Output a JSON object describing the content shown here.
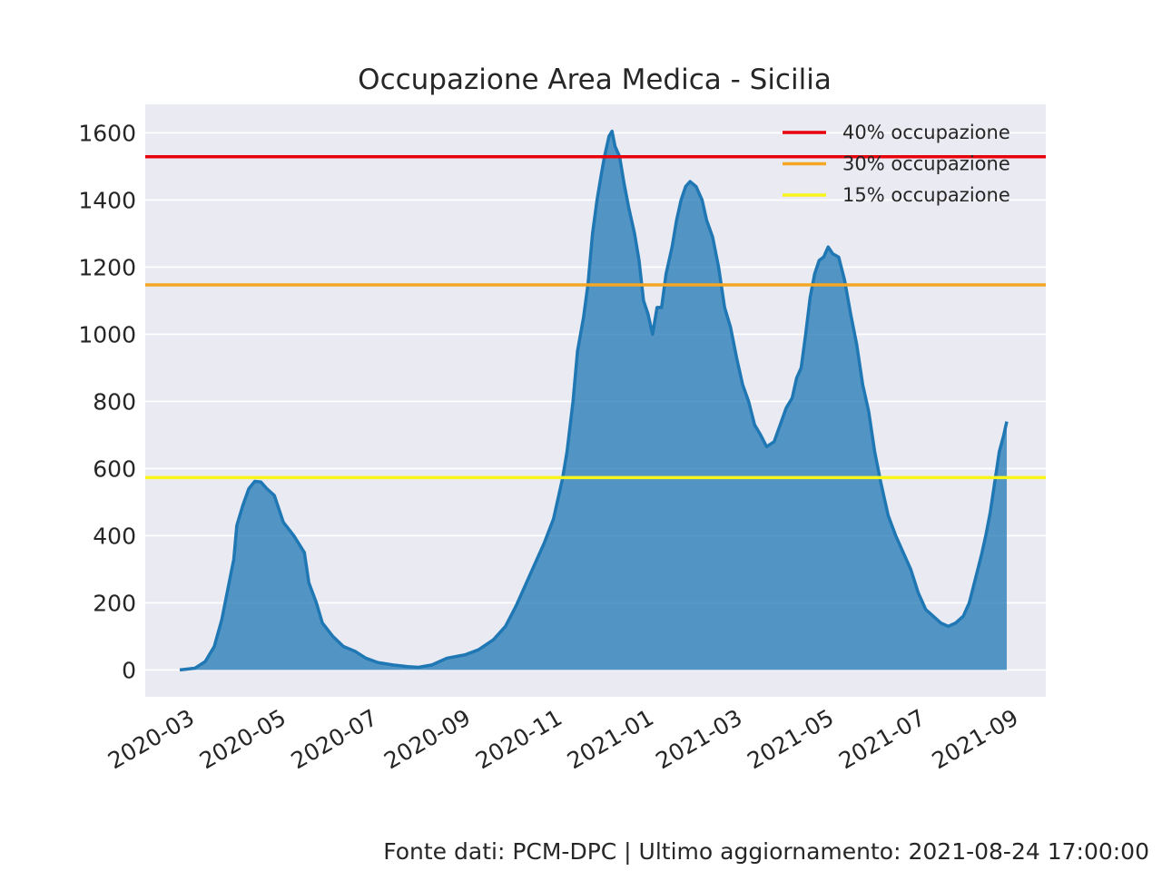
{
  "chart_data": {
    "type": "area",
    "title": "Occupazione Area Medica - Sicilia",
    "xlabel": "",
    "ylabel": "",
    "x_start": "2020-02-24",
    "x_ticks": [
      "2020-03",
      "2020-05",
      "2020-07",
      "2020-09",
      "2020-11",
      "2021-01",
      "2021-03",
      "2021-05",
      "2021-07",
      "2021-09"
    ],
    "x_tick_dates": [
      "2020-03-01",
      "2020-05-01",
      "2020-07-01",
      "2020-09-01",
      "2020-11-01",
      "2021-01-01",
      "2021-03-01",
      "2021-05-01",
      "2021-07-01",
      "2021-09-01"
    ],
    "xlim": [
      "2020-02-01",
      "2021-09-23"
    ],
    "y_ticks": [
      "0",
      "200",
      "400",
      "600",
      "800",
      "1000",
      "1200",
      "1400",
      "1600"
    ],
    "y_tick_values": [
      0,
      200,
      400,
      600,
      800,
      1000,
      1200,
      1400,
      1600
    ],
    "ylim": [
      -80,
      1685
    ],
    "grid": true,
    "legend_position": "top-right",
    "series": [
      {
        "color": "#1f77b4",
        "points": [
          [
            "2020-02-24",
            0
          ],
          [
            "2020-03-05",
            5
          ],
          [
            "2020-03-12",
            25
          ],
          [
            "2020-03-18",
            70
          ],
          [
            "2020-03-23",
            150
          ],
          [
            "2020-03-27",
            240
          ],
          [
            "2020-03-31",
            330
          ],
          [
            "2020-04-02",
            430
          ],
          [
            "2020-04-06",
            490
          ],
          [
            "2020-04-10",
            540
          ],
          [
            "2020-04-14",
            562
          ],
          [
            "2020-04-18",
            560
          ],
          [
            "2020-04-22",
            540
          ],
          [
            "2020-04-27",
            520
          ],
          [
            "2020-05-03",
            440
          ],
          [
            "2020-05-10",
            400
          ],
          [
            "2020-05-17",
            350
          ],
          [
            "2020-05-20",
            260
          ],
          [
            "2020-05-25",
            200
          ],
          [
            "2020-05-29",
            140
          ],
          [
            "2020-06-05",
            100
          ],
          [
            "2020-06-12",
            70
          ],
          [
            "2020-06-20",
            55
          ],
          [
            "2020-06-27",
            35
          ],
          [
            "2020-07-05",
            22
          ],
          [
            "2020-07-15",
            15
          ],
          [
            "2020-07-25",
            10
          ],
          [
            "2020-08-01",
            8
          ],
          [
            "2020-08-10",
            15
          ],
          [
            "2020-08-20",
            35
          ],
          [
            "2020-09-01",
            45
          ],
          [
            "2020-09-10",
            60
          ],
          [
            "2020-09-20",
            90
          ],
          [
            "2020-09-28",
            130
          ],
          [
            "2020-10-05",
            190
          ],
          [
            "2020-10-12",
            260
          ],
          [
            "2020-10-18",
            320
          ],
          [
            "2020-10-24",
            380
          ],
          [
            "2020-10-30",
            450
          ],
          [
            "2020-11-05",
            570
          ],
          [
            "2020-11-08",
            650
          ],
          [
            "2020-11-12",
            800
          ],
          [
            "2020-11-15",
            950
          ],
          [
            "2020-11-19",
            1050
          ],
          [
            "2020-11-22",
            1150
          ],
          [
            "2020-11-25",
            1300
          ],
          [
            "2020-11-28",
            1400
          ],
          [
            "2020-12-01",
            1480
          ],
          [
            "2020-12-03",
            1530
          ],
          [
            "2020-12-06",
            1590
          ],
          [
            "2020-12-08",
            1605
          ],
          [
            "2020-12-10",
            1560
          ],
          [
            "2020-12-13",
            1530
          ],
          [
            "2020-12-16",
            1450
          ],
          [
            "2020-12-19",
            1380
          ],
          [
            "2020-12-23",
            1300
          ],
          [
            "2020-12-26",
            1220
          ],
          [
            "2020-12-29",
            1100
          ],
          [
            "2021-01-01",
            1060
          ],
          [
            "2021-01-04",
            1000
          ],
          [
            "2021-01-07",
            1080
          ],
          [
            "2021-01-10",
            1080
          ],
          [
            "2021-01-13",
            1180
          ],
          [
            "2021-01-17",
            1260
          ],
          [
            "2021-01-20",
            1340
          ],
          [
            "2021-01-23",
            1400
          ],
          [
            "2021-01-26",
            1440
          ],
          [
            "2021-01-29",
            1455
          ],
          [
            "2021-02-02",
            1440
          ],
          [
            "2021-02-06",
            1400
          ],
          [
            "2021-02-09",
            1340
          ],
          [
            "2021-02-13",
            1290
          ],
          [
            "2021-02-17",
            1200
          ],
          [
            "2021-02-21",
            1080
          ],
          [
            "2021-02-25",
            1020
          ],
          [
            "2021-03-01",
            930
          ],
          [
            "2021-03-05",
            850
          ],
          [
            "2021-03-09",
            800
          ],
          [
            "2021-03-13",
            730
          ],
          [
            "2021-03-17",
            700
          ],
          [
            "2021-03-21",
            665
          ],
          [
            "2021-03-26",
            680
          ],
          [
            "2021-03-30",
            730
          ],
          [
            "2021-04-03",
            780
          ],
          [
            "2021-04-07",
            810
          ],
          [
            "2021-04-10",
            870
          ],
          [
            "2021-04-13",
            900
          ],
          [
            "2021-04-16",
            1000
          ],
          [
            "2021-04-19",
            1110
          ],
          [
            "2021-04-22",
            1180
          ],
          [
            "2021-04-25",
            1220
          ],
          [
            "2021-04-28",
            1230
          ],
          [
            "2021-05-01",
            1260
          ],
          [
            "2021-05-04",
            1240
          ],
          [
            "2021-05-08",
            1230
          ],
          [
            "2021-05-12",
            1160
          ],
          [
            "2021-05-16",
            1060
          ],
          [
            "2021-05-20",
            970
          ],
          [
            "2021-05-24",
            850
          ],
          [
            "2021-05-28",
            770
          ],
          [
            "2021-06-01",
            650
          ],
          [
            "2021-06-05",
            560
          ],
          [
            "2021-06-10",
            460
          ],
          [
            "2021-06-15",
            400
          ],
          [
            "2021-06-20",
            350
          ],
          [
            "2021-06-25",
            300
          ],
          [
            "2021-06-30",
            230
          ],
          [
            "2021-07-05",
            180
          ],
          [
            "2021-07-10",
            160
          ],
          [
            "2021-07-15",
            140
          ],
          [
            "2021-07-20",
            130
          ],
          [
            "2021-07-25",
            140
          ],
          [
            "2021-07-30",
            160
          ],
          [
            "2021-08-03",
            200
          ],
          [
            "2021-08-07",
            270
          ],
          [
            "2021-08-11",
            340
          ],
          [
            "2021-08-14",
            400
          ],
          [
            "2021-08-17",
            470
          ],
          [
            "2021-08-20",
            560
          ],
          [
            "2021-08-23",
            650
          ],
          [
            "2021-08-26",
            700
          ],
          [
            "2021-08-28",
            740
          ]
        ]
      }
    ],
    "thresholds": [
      {
        "name": "40% occupazione",
        "value": 1529,
        "color": "#e8000b"
      },
      {
        "name": "30% occupazione",
        "value": 1147,
        "color": "#f5a623"
      },
      {
        "name": "15% occupazione",
        "value": 573,
        "color": "#f7f51c"
      }
    ]
  },
  "footer": "Fonte dati: PCM-DPC | Ultimo aggiornamento: 2021-08-24 17:00:00"
}
